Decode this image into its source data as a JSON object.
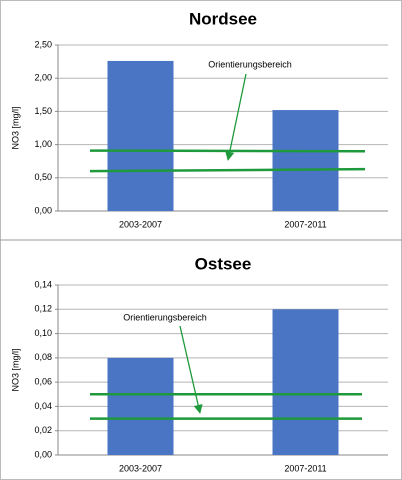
{
  "chart_data": [
    {
      "type": "bar",
      "title": "Nordsee",
      "y_label": "NO3 [mg/l]",
      "categories": [
        "2003-2007",
        "2007-2011"
      ],
      "values": [
        2.26,
        1.52
      ],
      "color": "#4a74c4",
      "ylim": [
        0,
        2.5
      ],
      "yticks": [
        {
          "value": 0,
          "label": "0,00"
        },
        {
          "value": 0.5,
          "label": "0,50"
        },
        {
          "value": 1,
          "label": "1,00"
        },
        {
          "value": 1.5,
          "label": "1,50"
        },
        {
          "value": 2,
          "label": "2,00"
        },
        {
          "value": 2.5,
          "label": "2,50"
        }
      ],
      "grid": true,
      "reference_color": "#1e9a3c",
      "reference_lines": [
        [
          0.91,
          0.9
        ],
        [
          0.6,
          0.63
        ]
      ],
      "annotation": "Orientierungsbereich"
    },
    {
      "type": "bar",
      "title": "Ostsee",
      "y_label": "NO3 [mg/l]",
      "categories": [
        "2003-2007",
        "2007-2011"
      ],
      "values": [
        0.08,
        0.12
      ],
      "color": "#4a74c4",
      "ylim": [
        0,
        0.14
      ],
      "yticks": [
        {
          "value": 0,
          "label": "0,00"
        },
        {
          "value": 0.02,
          "label": "0,02"
        },
        {
          "value": 0.04,
          "label": "0,04"
        },
        {
          "value": 0.06,
          "label": "0,06"
        },
        {
          "value": 0.08,
          "label": "0,08"
        },
        {
          "value": 0.1,
          "label": "0,10"
        },
        {
          "value": 0.12,
          "label": "0,12"
        },
        {
          "value": 0.14,
          "label": "0,14"
        }
      ],
      "grid": true,
      "reference_color": "#1e9a3c",
      "reference_lines": [
        [
          0.05,
          0.05
        ],
        [
          0.03,
          0.03
        ]
      ],
      "annotation": "Orientierungsbereich"
    }
  ]
}
